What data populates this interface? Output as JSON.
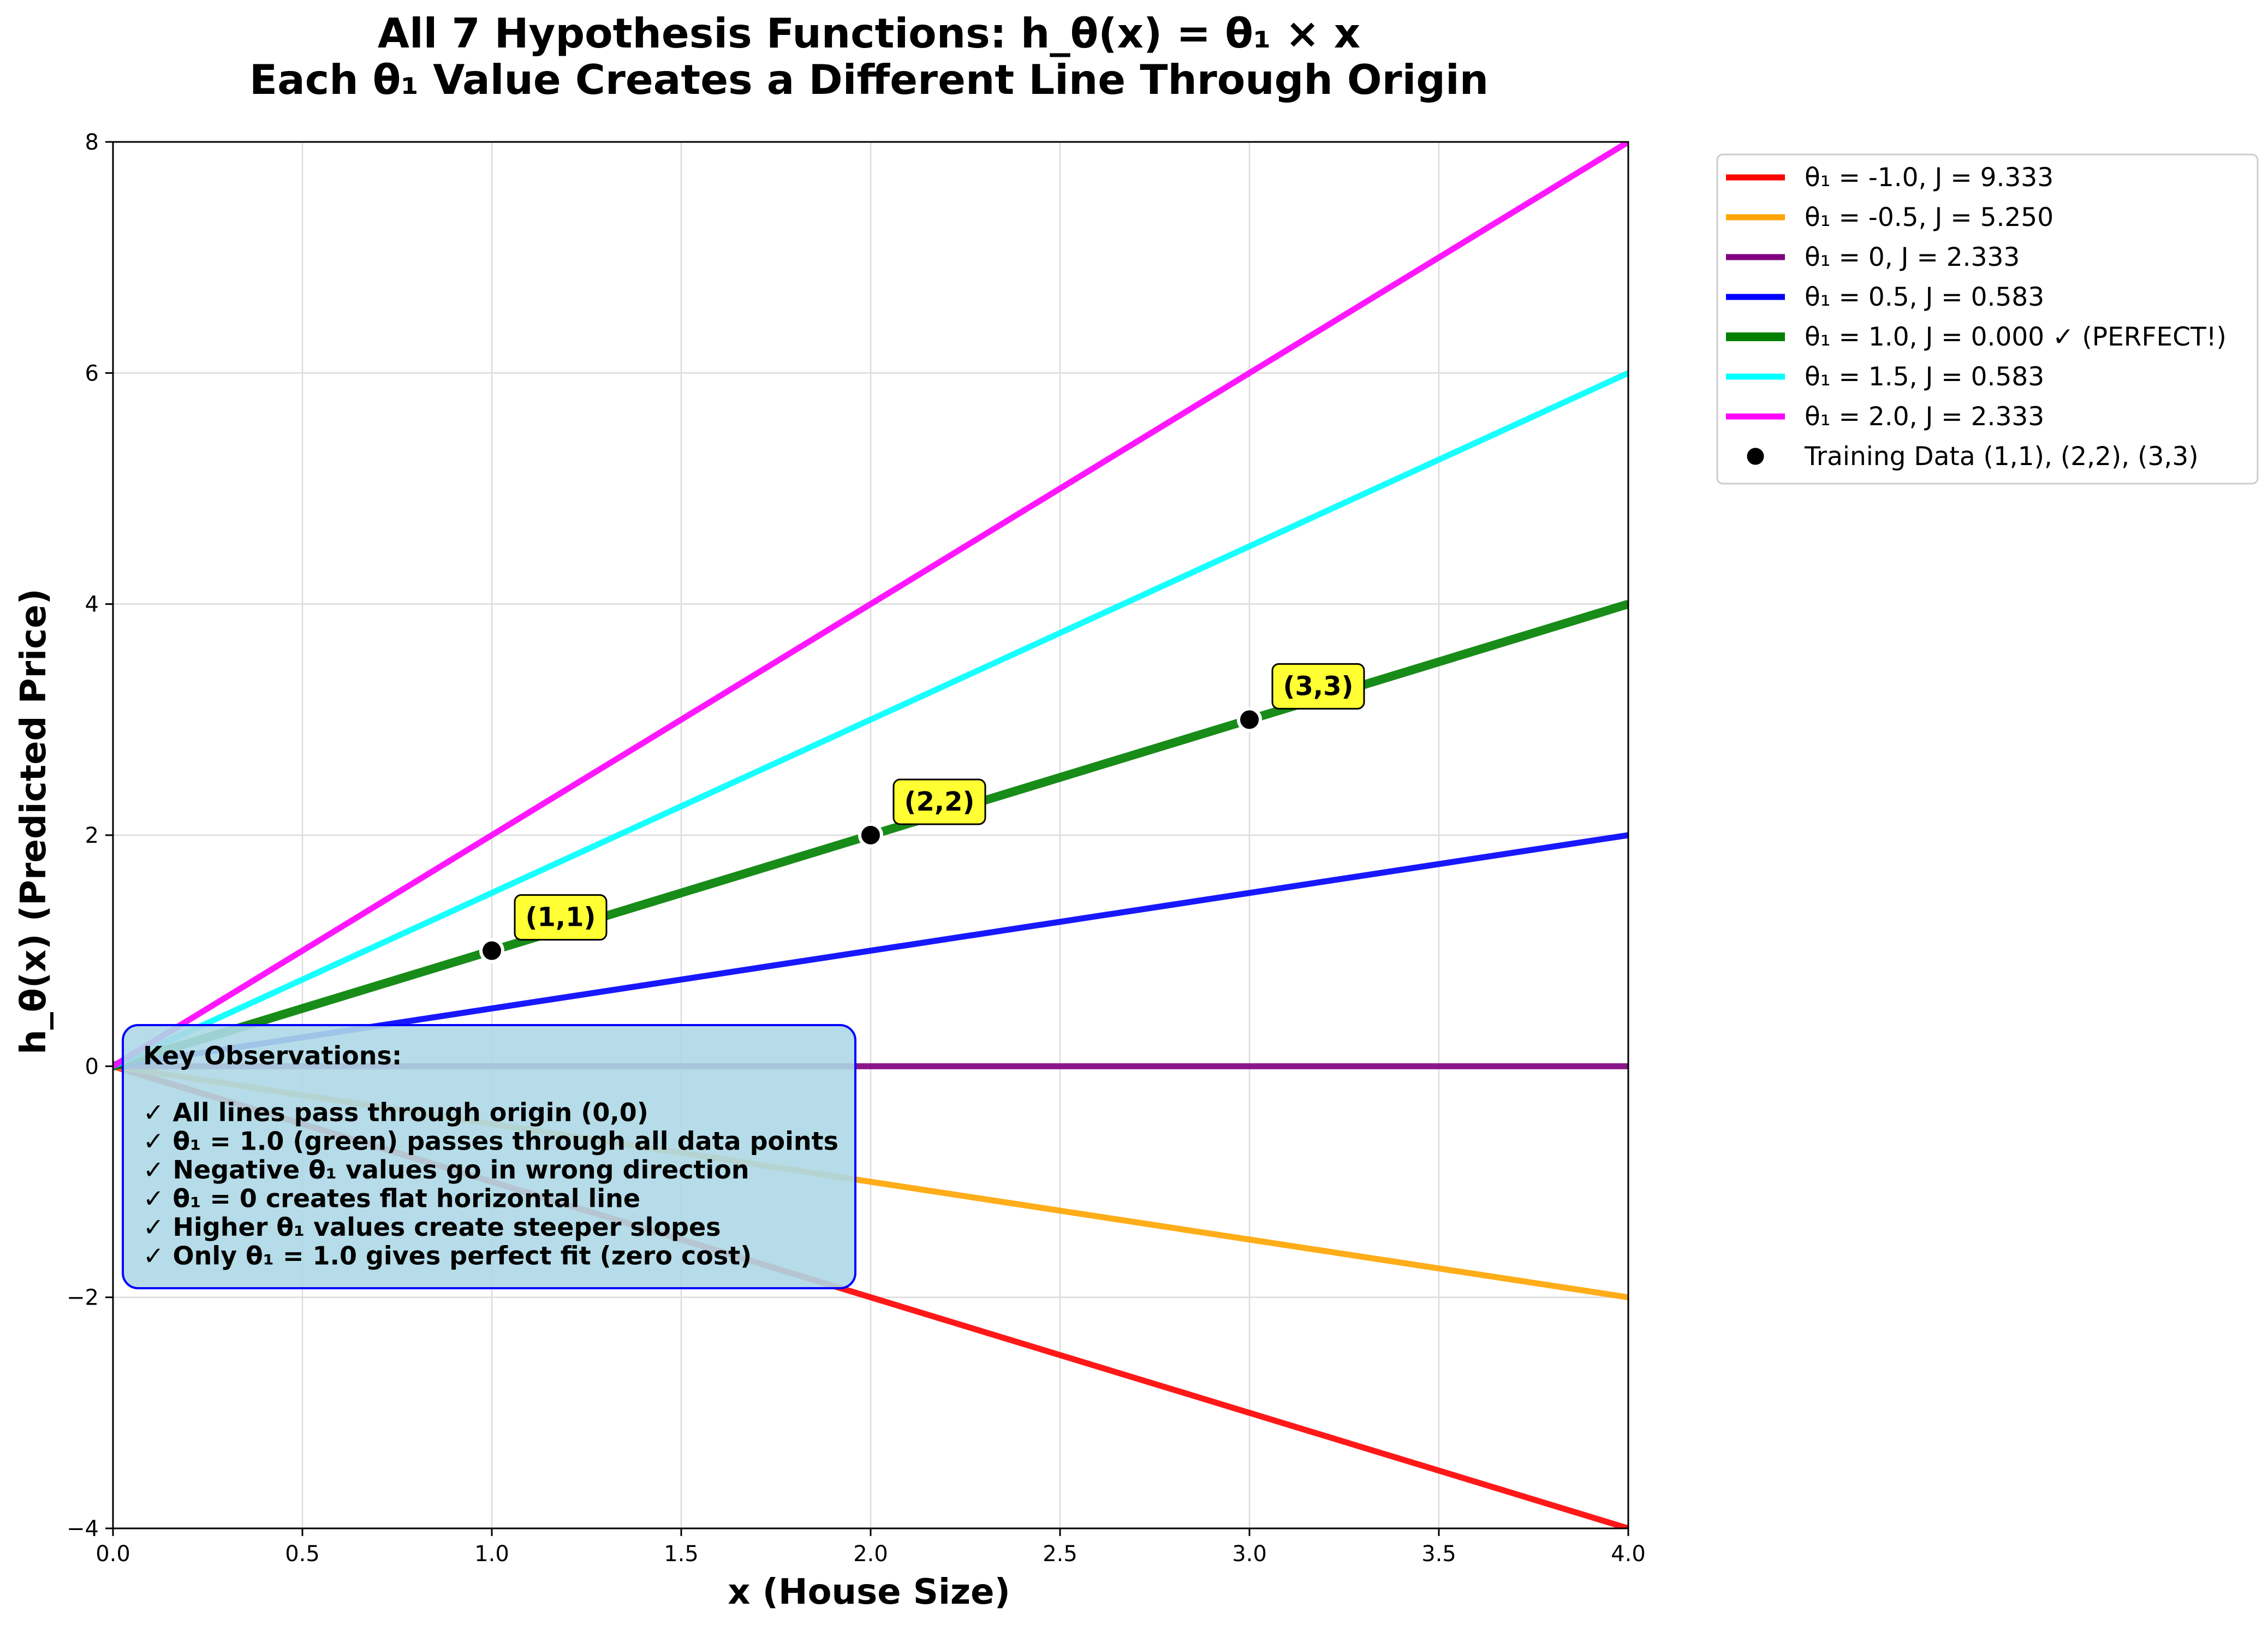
{
  "chart_data": {
    "type": "line",
    "title_line1": "All 7 Hypothesis Functions: h_θ(x) = θ₁ × x",
    "title_line2": "Each θ₁ Value Creates a Different Line Through Origin",
    "xlabel": "x (House Size)",
    "ylabel": "h_θ(x) (Predicted Price)",
    "xlim": [
      0,
      4
    ],
    "ylim": [
      -4,
      8
    ],
    "xticks": [
      0,
      0.5,
      1,
      1.5,
      2,
      2.5,
      3,
      3.5,
      4
    ],
    "xtick_labels": [
      "0.0",
      "0.5",
      "1.0",
      "1.5",
      "2.0",
      "2.5",
      "3.0",
      "3.5",
      "4.0"
    ],
    "yticks": [
      -4,
      -2,
      0,
      2,
      4,
      6,
      8
    ],
    "ytick_labels": [
      "−4",
      "−2",
      "0",
      "2",
      "4",
      "6",
      "8"
    ],
    "grid": true,
    "legend_position": "outside-upper-right",
    "series": [
      {
        "name": "θ₁ = -1.0, J = 9.333",
        "theta": -1.0,
        "color": "#ff0000",
        "points": [
          [
            0,
            0
          ],
          [
            4,
            -4
          ]
        ]
      },
      {
        "name": "θ₁ = -0.5, J = 5.250",
        "theta": -0.5,
        "color": "#ffa500",
        "points": [
          [
            0,
            0
          ],
          [
            4,
            -2
          ]
        ]
      },
      {
        "name": "θ₁ = 0, J = 2.333",
        "theta": 0,
        "color": "#800080",
        "points": [
          [
            0,
            0
          ],
          [
            4,
            0
          ]
        ]
      },
      {
        "name": "θ₁ = 0.5, J = 0.583",
        "theta": 0.5,
        "color": "#0000ff",
        "points": [
          [
            0,
            0
          ],
          [
            4,
            2
          ]
        ]
      },
      {
        "name": "θ₁ = 1.0, J = 0.000 ✓ (PERFECT!)",
        "theta": 1.0,
        "color": "#008000",
        "points": [
          [
            0,
            0
          ],
          [
            4,
            4
          ]
        ],
        "emphasis": true
      },
      {
        "name": "θ₁ = 1.5, J = 0.583",
        "theta": 1.5,
        "color": "#00ffff",
        "points": [
          [
            0,
            0
          ],
          [
            4,
            6
          ]
        ]
      },
      {
        "name": "θ₁ = 2.0, J = 2.333",
        "theta": 2.0,
        "color": "#ff00ff",
        "points": [
          [
            0,
            0
          ],
          [
            4,
            8
          ]
        ]
      }
    ],
    "training_data": {
      "name": "Training Data (1,1), (2,2), (3,3)",
      "color": "#000000",
      "points": [
        [
          1,
          1
        ],
        [
          2,
          2
        ],
        [
          3,
          3
        ]
      ],
      "labels": [
        "(1,1)",
        "(2,2)",
        "(3,3)"
      ]
    },
    "observations": {
      "heading": "Key Observations:",
      "items": [
        "✓ All lines pass through origin (0,0)",
        "✓ θ₁ = 1.0 (green) passes through all data points",
        "✓ Negative θ₁ values go in wrong direction",
        "✓ θ₁ = 0 creates flat horizontal line",
        "✓ Higher θ₁ values create steeper slopes",
        "✓ Only θ₁ = 1.0 gives perfect fit (zero cost)"
      ]
    }
  }
}
